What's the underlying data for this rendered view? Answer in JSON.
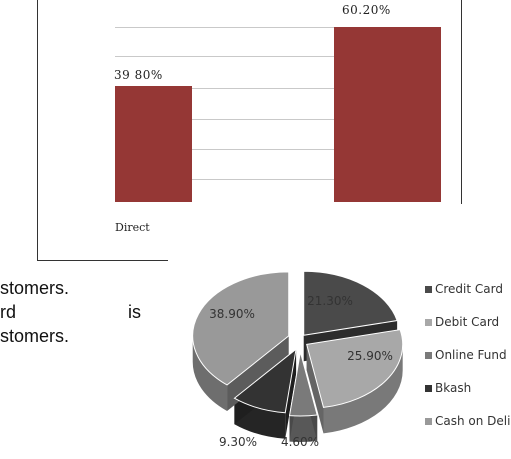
{
  "bar_chart": {
    "type": "bar",
    "categories": [
      "Direct",
      ""
    ],
    "values": [
      39.8,
      60.2
    ],
    "value_labels": [
      "39 80%",
      "60.20%"
    ],
    "color": "#953735",
    "ylim": [
      0,
      70
    ],
    "grid": true
  },
  "body_text": {
    "line1": "stomers.",
    "line2a": "rd",
    "line2b": "is",
    "line3": "stomers."
  },
  "chart_data": {
    "type": "pie",
    "style": "3d-exploded",
    "labels": [
      "Credit Card",
      "Debit Card",
      "Online Fund",
      "Bkash",
      "Cash on Deli"
    ],
    "values": [
      21.3,
      25.9,
      4.6,
      9.3,
      38.9
    ],
    "value_labels": [
      "21.30%",
      "25.90%",
      "4.60%",
      "9.30%",
      "38.90%"
    ],
    "colors": [
      "#4a4a4a",
      "#a8a8a8",
      "#7a7a7a",
      "#333333",
      "#999999"
    ],
    "legend": "right"
  }
}
